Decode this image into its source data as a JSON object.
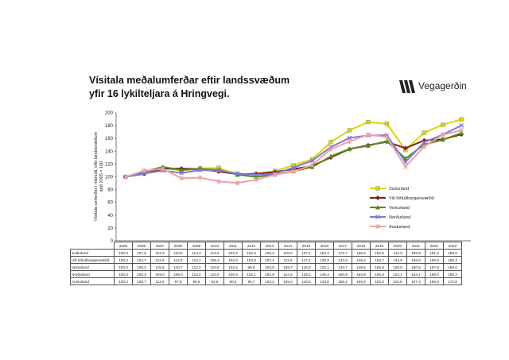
{
  "title_lines": [
    "Vísitala meðalumferðar eftir landssvæðum",
    "yfir 16 lykilteljara á Hringvegi."
  ],
  "logo": {
    "name": "vegagerdin-logo",
    "text": "Vegagerðin"
  },
  "chart_data": {
    "type": "line",
    "title": "Vísitala meðalumferðar eftir landssvæðum yfir 16 lykilteljara á Hringvegi.",
    "ylabel_lines": [
      "Vísitala umferðar í mánuði, eftir landssvæðum",
      "árið 2005 = 100"
    ],
    "xlabel": "",
    "ylim": [
      0,
      200
    ],
    "yticks": [
      0,
      20,
      40,
      60,
      80,
      100,
      120,
      140,
      160,
      180,
      200
    ],
    "grid": false,
    "legend_position": "right",
    "categories": [
      "2005",
      "2006",
      "2007",
      "2008",
      "2009",
      "2010",
      "2011",
      "2012",
      "2013",
      "2014",
      "2015",
      "2016",
      "2017",
      "2018",
      "2019",
      "2020",
      "2021",
      "2022",
      "2023"
    ],
    "series": [
      {
        "name": "Suðurland",
        "color": "#d8d800",
        "marker": "square",
        "values": [
          100.0,
          107.5,
          113.3,
          110.0,
          113.3,
          114.0,
          103.3,
          104.3,
          109.2,
          118.0,
          127.1,
          154.3,
          172.7,
          185.6,
          182.9,
          142.0,
          168.9,
          181.3,
          189.9
        ]
      },
      {
        "name": "Við höfuðborgarsvæðið",
        "color": "#8b1a1a",
        "marker": "diamond",
        "values": [
          100.0,
          104.7,
          112.9,
          112.9,
          112.1,
          108.2,
          104.0,
          104.8,
          107.4,
          111.9,
          117.2,
          130.3,
          143.3,
          149.4,
          154.7,
          144.8,
          156.9,
          158.5,
          166.3
        ]
      },
      {
        "name": "Vesturland",
        "color": "#4f8f1f",
        "marker": "triangle",
        "values": [
          100.0,
          108.2,
          115.5,
          110.7,
          112.2,
          110.8,
          103.4,
          99.8,
          103.5,
          108.7,
          115.3,
          132.1,
          143.7,
          148.5,
          155.8,
          128.5,
          150.5,
          157.8,
          168.6
        ]
      },
      {
        "name": "Norðurland",
        "color": "#7b7bd6",
        "marker": "x",
        "values": [
          100.0,
          105.3,
          109.6,
          106.0,
          110.4,
          110.0,
          105.3,
          103.1,
          104.9,
          114.3,
          125.1,
          146.4,
          160.8,
          164.8,
          165.0,
          123.1,
          154.1,
          166.0,
          180.3
        ]
      },
      {
        "name": "Austurland",
        "color": "#f0a0a8",
        "marker": "asterisk",
        "values": [
          100.0,
          109.7,
          112.5,
          97.5,
          98.6,
          92.8,
          90.3,
          95.7,
          103.2,
          108.2,
          118.6,
          143.0,
          155.2,
          165.9,
          162.0,
          115.8,
          147.3,
          165.6,
          172.8
        ]
      }
    ],
    "table_labels": {
      "Suðurland": [
        "100,0",
        "107,5",
        "113,3",
        "110,0",
        "113,3",
        "114,0",
        "103,3",
        "104,3",
        "109,2",
        "118,0",
        "127,1",
        "154,3",
        "172,7",
        "185,6",
        "182,9",
        "142,0",
        "168,9",
        "181,3",
        "189,9"
      ],
      "Við höfuðborgarsvæðið": [
        "100,0",
        "104,7",
        "112,9",
        "112,9",
        "112,1",
        "108,2",
        "104,0",
        "104,8",
        "107,4",
        "111,9",
        "117,2",
        "130,3",
        "143,3",
        "149,4",
        "154,7",
        "144,8",
        "156,9",
        "158,5",
        "166,3"
      ],
      "Vesturland": [
        "100,0",
        "108,2",
        "115,5",
        "110,7",
        "112,2",
        "110,8",
        "103,4",
        "99,8",
        "103,5",
        "108,7",
        "115,3",
        "132,1",
        "143,7",
        "148,5",
        "155,8",
        "128,5",
        "150,5",
        "157,8",
        "168,6"
      ],
      "Norðurland": [
        "100,0",
        "105,3",
        "109,6",
        "106,0",
        "110,4",
        "110,0",
        "105,3",
        "103,1",
        "104,9",
        "114,3",
        "125,1",
        "146,4",
        "160,8",
        "164,8",
        "165,0",
        "123,1",
        "154,1",
        "166,0",
        "180,3"
      ],
      "Austurland": [
        "100,0",
        "109,7",
        "112,5",
        "97,5",
        "98,6",
        "92,8",
        "90,3",
        "95,7",
        "103,2",
        "108,2",
        "118,6",
        "143,0",
        "155,2",
        "165,9",
        "162,0",
        "115,8",
        "147,3",
        "165,6",
        "172,8"
      ]
    }
  }
}
